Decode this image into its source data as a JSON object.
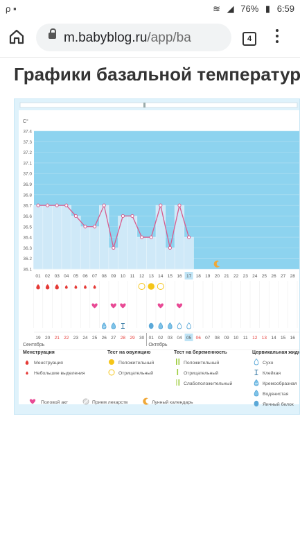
{
  "status_bar": {
    "left_icons": "ρ ▪",
    "battery": "76%",
    "time": "6:59"
  },
  "browser": {
    "url_host": "m.babyblog.ru",
    "url_path": "/app/ba",
    "tab_count": "4"
  },
  "page": {
    "title": "Графики базальной температур"
  },
  "chart_data": {
    "type": "line",
    "title": "",
    "ylabel": "C°",
    "ylim": [
      36.1,
      37.4
    ],
    "yticks": [
      "37.4",
      "37.3",
      "37.2",
      "37.1",
      "37.0",
      "36.9",
      "36.8",
      "36.7",
      "36.6",
      "36.5",
      "36.4",
      "36.3",
      "36.2",
      "36.1"
    ],
    "cycle_days": [
      "01",
      "02",
      "03",
      "04",
      "05",
      "06",
      "07",
      "08",
      "09",
      "10",
      "11",
      "12",
      "13",
      "14",
      "15",
      "16",
      "17",
      "18",
      "19",
      "20",
      "21",
      "22",
      "23",
      "24",
      "25",
      "26",
      "27",
      "28"
    ],
    "current_day": "17",
    "temperature": [
      36.7,
      36.7,
      36.7,
      36.7,
      36.6,
      36.5,
      36.5,
      36.7,
      36.3,
      36.6,
      36.6,
      36.4,
      36.4,
      36.7,
      36.3,
      36.7,
      36.4
    ],
    "menstruation_days": [
      "01",
      "02",
      "03"
    ],
    "light_bleeding_days": [
      "04",
      "05",
      "06",
      "07"
    ],
    "ovulation_negative_days": [
      "12",
      "14"
    ],
    "ovulation_positive_days": [
      "13"
    ],
    "intercourse_days": [
      "07",
      "09",
      "10",
      "14",
      "16"
    ],
    "cervical": [
      {
        "day": "08",
        "kind": "creamy"
      },
      {
        "day": "09",
        "kind": "watery"
      },
      {
        "day": "10",
        "kind": "sticky"
      },
      {
        "day": "13",
        "kind": "egg-white"
      },
      {
        "day": "14",
        "kind": "watery"
      },
      {
        "day": "15",
        "kind": "watery"
      },
      {
        "day": "16",
        "kind": "dry"
      },
      {
        "day": "17",
        "kind": "dry"
      }
    ],
    "moon_day": "20",
    "dates": [
      "19",
      "20",
      "21",
      "22",
      "23",
      "24",
      "25",
      "26",
      "27",
      "28",
      "29",
      "30",
      "01",
      "02",
      "03",
      "04",
      "05",
      "06",
      "07",
      "08",
      "09",
      "10",
      "11",
      "12",
      "13",
      "14",
      "15",
      "16"
    ],
    "weekend_dates": [
      "21",
      "22",
      "28",
      "29",
      "05",
      "06",
      "12",
      "13"
    ],
    "today_date": "05",
    "month_labels": [
      "Сентябрь",
      "Октябрь"
    ]
  },
  "legend": {
    "menstruation": {
      "title": "Менструация",
      "items": [
        "Менструация",
        "Небольшие выделения"
      ]
    },
    "ovulation": {
      "title": "Тест на овуляцию",
      "items": [
        "Положительный",
        "Отрицательный"
      ]
    },
    "pregnancy": {
      "title": "Тест на беременность",
      "items": [
        "Положительный",
        "Отрицательный",
        "Слабоположительный"
      ]
    },
    "cervical": {
      "title": "Цервикальная жидк",
      "items": [
        "Сухо",
        "Клейкая",
        "Кремообразная",
        "Водянистая",
        "Яичный белок"
      ]
    },
    "bottom": [
      "Половой акт",
      "Прием лекарств",
      "Лунный календарь"
    ]
  },
  "colors": {
    "plot_bg": "#8dd3ef",
    "bar": "#cfe9f8",
    "line": "#d85b8d",
    "heart": "#e84a95",
    "blood": "#e53935",
    "yellow": "#f5c518",
    "drop": "#7ec3e8",
    "green": "#9ccc3c"
  }
}
